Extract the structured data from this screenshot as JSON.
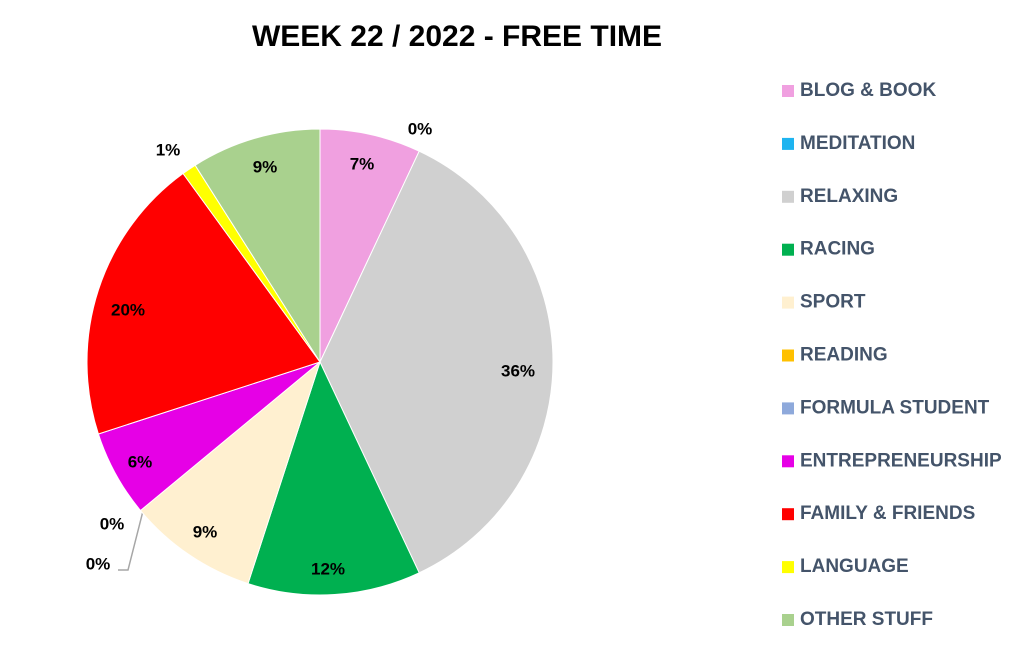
{
  "chart_data": {
    "type": "pie",
    "title": "WEEK 22 / 2022 - FREE TIME",
    "categories": [
      "BLOG & BOOK",
      "MEDITATION",
      "RELAXING",
      "RACING",
      "SPORT",
      "READING",
      "FORMULA STUDENT",
      "ENTREPRENEURSHIP",
      "FAMILY & FRIENDS",
      "LANGUAGE",
      "OTHER STUFF"
    ],
    "values": [
      7,
      0,
      36,
      12,
      9,
      0,
      0,
      6,
      20,
      1,
      9
    ],
    "value_labels": [
      "7%",
      "0%",
      "36%",
      "12%",
      "9%",
      "0%",
      "0%",
      "6%",
      "20%",
      "1%",
      "9%"
    ],
    "colors": [
      "#F0A0E0",
      "#1EB4F0",
      "#D0D0D0",
      "#00B050",
      "#FFF0D0",
      "#FFC000",
      "#8EA9DB",
      "#E600E6",
      "#FF0000",
      "#FFFF00",
      "#A9D18E"
    ],
    "legend": "right"
  }
}
